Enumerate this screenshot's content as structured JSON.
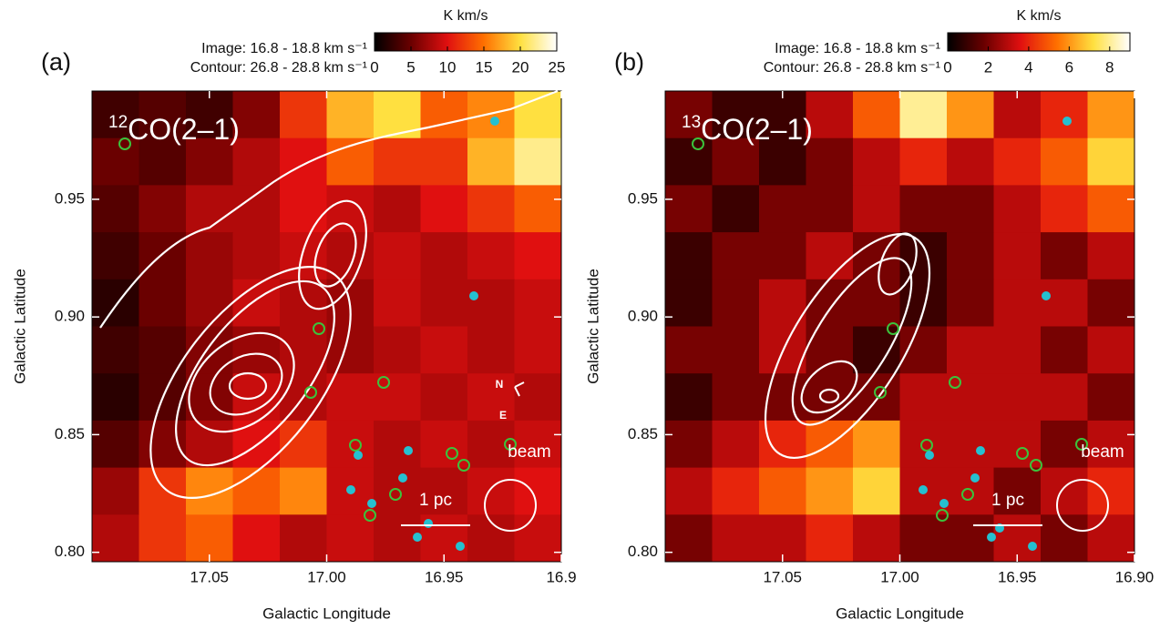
{
  "chart_data": [
    {
      "type": "heatmap",
      "panel_label": "(a)",
      "species_mass": "12",
      "species": "CO(2–1)",
      "subtitle": [
        "Image: 16.8 - 18.8 km s⁻¹",
        "Contour: 26.8 - 28.8 km s⁻¹"
      ],
      "x_label": "Galactic Longitude",
      "y_label": "Galactic Latitude",
      "xlim": [
        17.1,
        16.9
      ],
      "xticks": [
        17.05,
        {
          "value": 17.0,
          "label": "17.00"
        },
        16.95,
        16.9
      ],
      "ylim": [
        0.796,
        0.996
      ],
      "yticks": [
        {
          "value": 0.8,
          "label": "0.80"
        },
        0.85,
        {
          "value": 0.9,
          "label": "0.90"
        },
        0.95
      ],
      "colorbar_label": "K km/s",
      "clim": [
        0,
        25
      ],
      "cticks": [
        0,
        5,
        10,
        15,
        20,
        25
      ],
      "colormap": [
        "#000000",
        "#6a0000",
        "#e01010",
        "#ff7000",
        "#ffe040",
        "#ffffff"
      ],
      "z": [
        [
          3,
          4,
          3,
          6,
          12,
          18,
          20,
          14,
          16,
          20
        ],
        [
          5,
          4,
          6,
          8,
          10,
          14,
          12,
          12,
          18,
          22
        ],
        [
          4,
          6,
          8,
          8,
          10,
          9,
          8,
          10,
          12,
          14
        ],
        [
          3,
          5,
          7,
          8,
          9,
          8,
          9,
          8,
          9,
          10
        ],
        [
          2,
          5,
          7,
          9,
          8,
          7,
          9,
          8,
          8,
          9
        ],
        [
          3,
          4,
          6,
          7,
          8,
          7,
          8,
          9,
          8,
          9
        ],
        [
          2,
          4,
          6,
          9,
          8,
          9,
          9,
          8,
          9,
          8
        ],
        [
          4,
          6,
          8,
          10,
          12,
          9,
          8,
          9,
          8,
          9
        ],
        [
          7,
          12,
          16,
          14,
          16,
          9,
          8,
          8,
          9,
          10
        ],
        [
          8,
          12,
          14,
          10,
          8,
          9,
          8,
          9,
          8,
          9
        ]
      ],
      "annotations": [
        "N",
        "E",
        "beam",
        "1 pc"
      ]
    },
    {
      "type": "heatmap",
      "panel_label": "(b)",
      "species_mass": "13",
      "species": "CO(2–1)",
      "subtitle": [
        "Image: 16.8 - 18.8 km s⁻¹",
        "Contour: 26.8 - 28.8 km s⁻¹"
      ],
      "x_label": "Galactic Longitude",
      "y_label": "Galactic Latitude",
      "xlim": [
        17.1,
        16.9
      ],
      "xticks": [
        17.05,
        {
          "value": 17.0,
          "label": "17.00"
        },
        16.95,
        {
          "value": 16.9,
          "label": "16.90"
        }
      ],
      "ylim": [
        0.796,
        0.996
      ],
      "yticks": [
        {
          "value": 0.8,
          "label": "0.80"
        },
        0.85,
        {
          "value": 0.9,
          "label": "0.90"
        },
        0.95
      ],
      "colorbar_label": "K km/s",
      "clim": [
        0,
        9
      ],
      "cticks": [
        0,
        2,
        4,
        6,
        8
      ],
      "colormap": [
        "#000000",
        "#6a0000",
        "#e01010",
        "#ff7000",
        "#ffe040",
        "#ffffff"
      ],
      "z": [
        [
          2,
          1,
          1,
          3,
          5,
          8,
          6,
          3,
          4,
          6
        ],
        [
          1,
          2,
          1,
          2,
          3,
          4,
          3,
          4,
          5,
          7
        ],
        [
          2,
          1,
          2,
          2,
          3,
          2,
          2,
          3,
          4,
          5
        ],
        [
          1,
          2,
          2,
          3,
          2,
          1,
          2,
          3,
          2,
          3
        ],
        [
          1,
          2,
          3,
          2,
          2,
          1,
          2,
          3,
          3,
          2
        ],
        [
          2,
          2,
          3,
          2,
          1,
          2,
          3,
          3,
          2,
          3
        ],
        [
          1,
          2,
          2,
          2,
          2,
          3,
          3,
          3,
          3,
          2
        ],
        [
          2,
          3,
          4,
          5,
          6,
          3,
          3,
          3,
          2,
          3
        ],
        [
          3,
          4,
          5,
          6,
          7,
          3,
          3,
          2,
          3,
          4
        ],
        [
          2,
          3,
          3,
          4,
          3,
          2,
          2,
          3,
          2,
          3
        ]
      ],
      "annotations": [
        "beam",
        "1 pc"
      ]
    }
  ]
}
